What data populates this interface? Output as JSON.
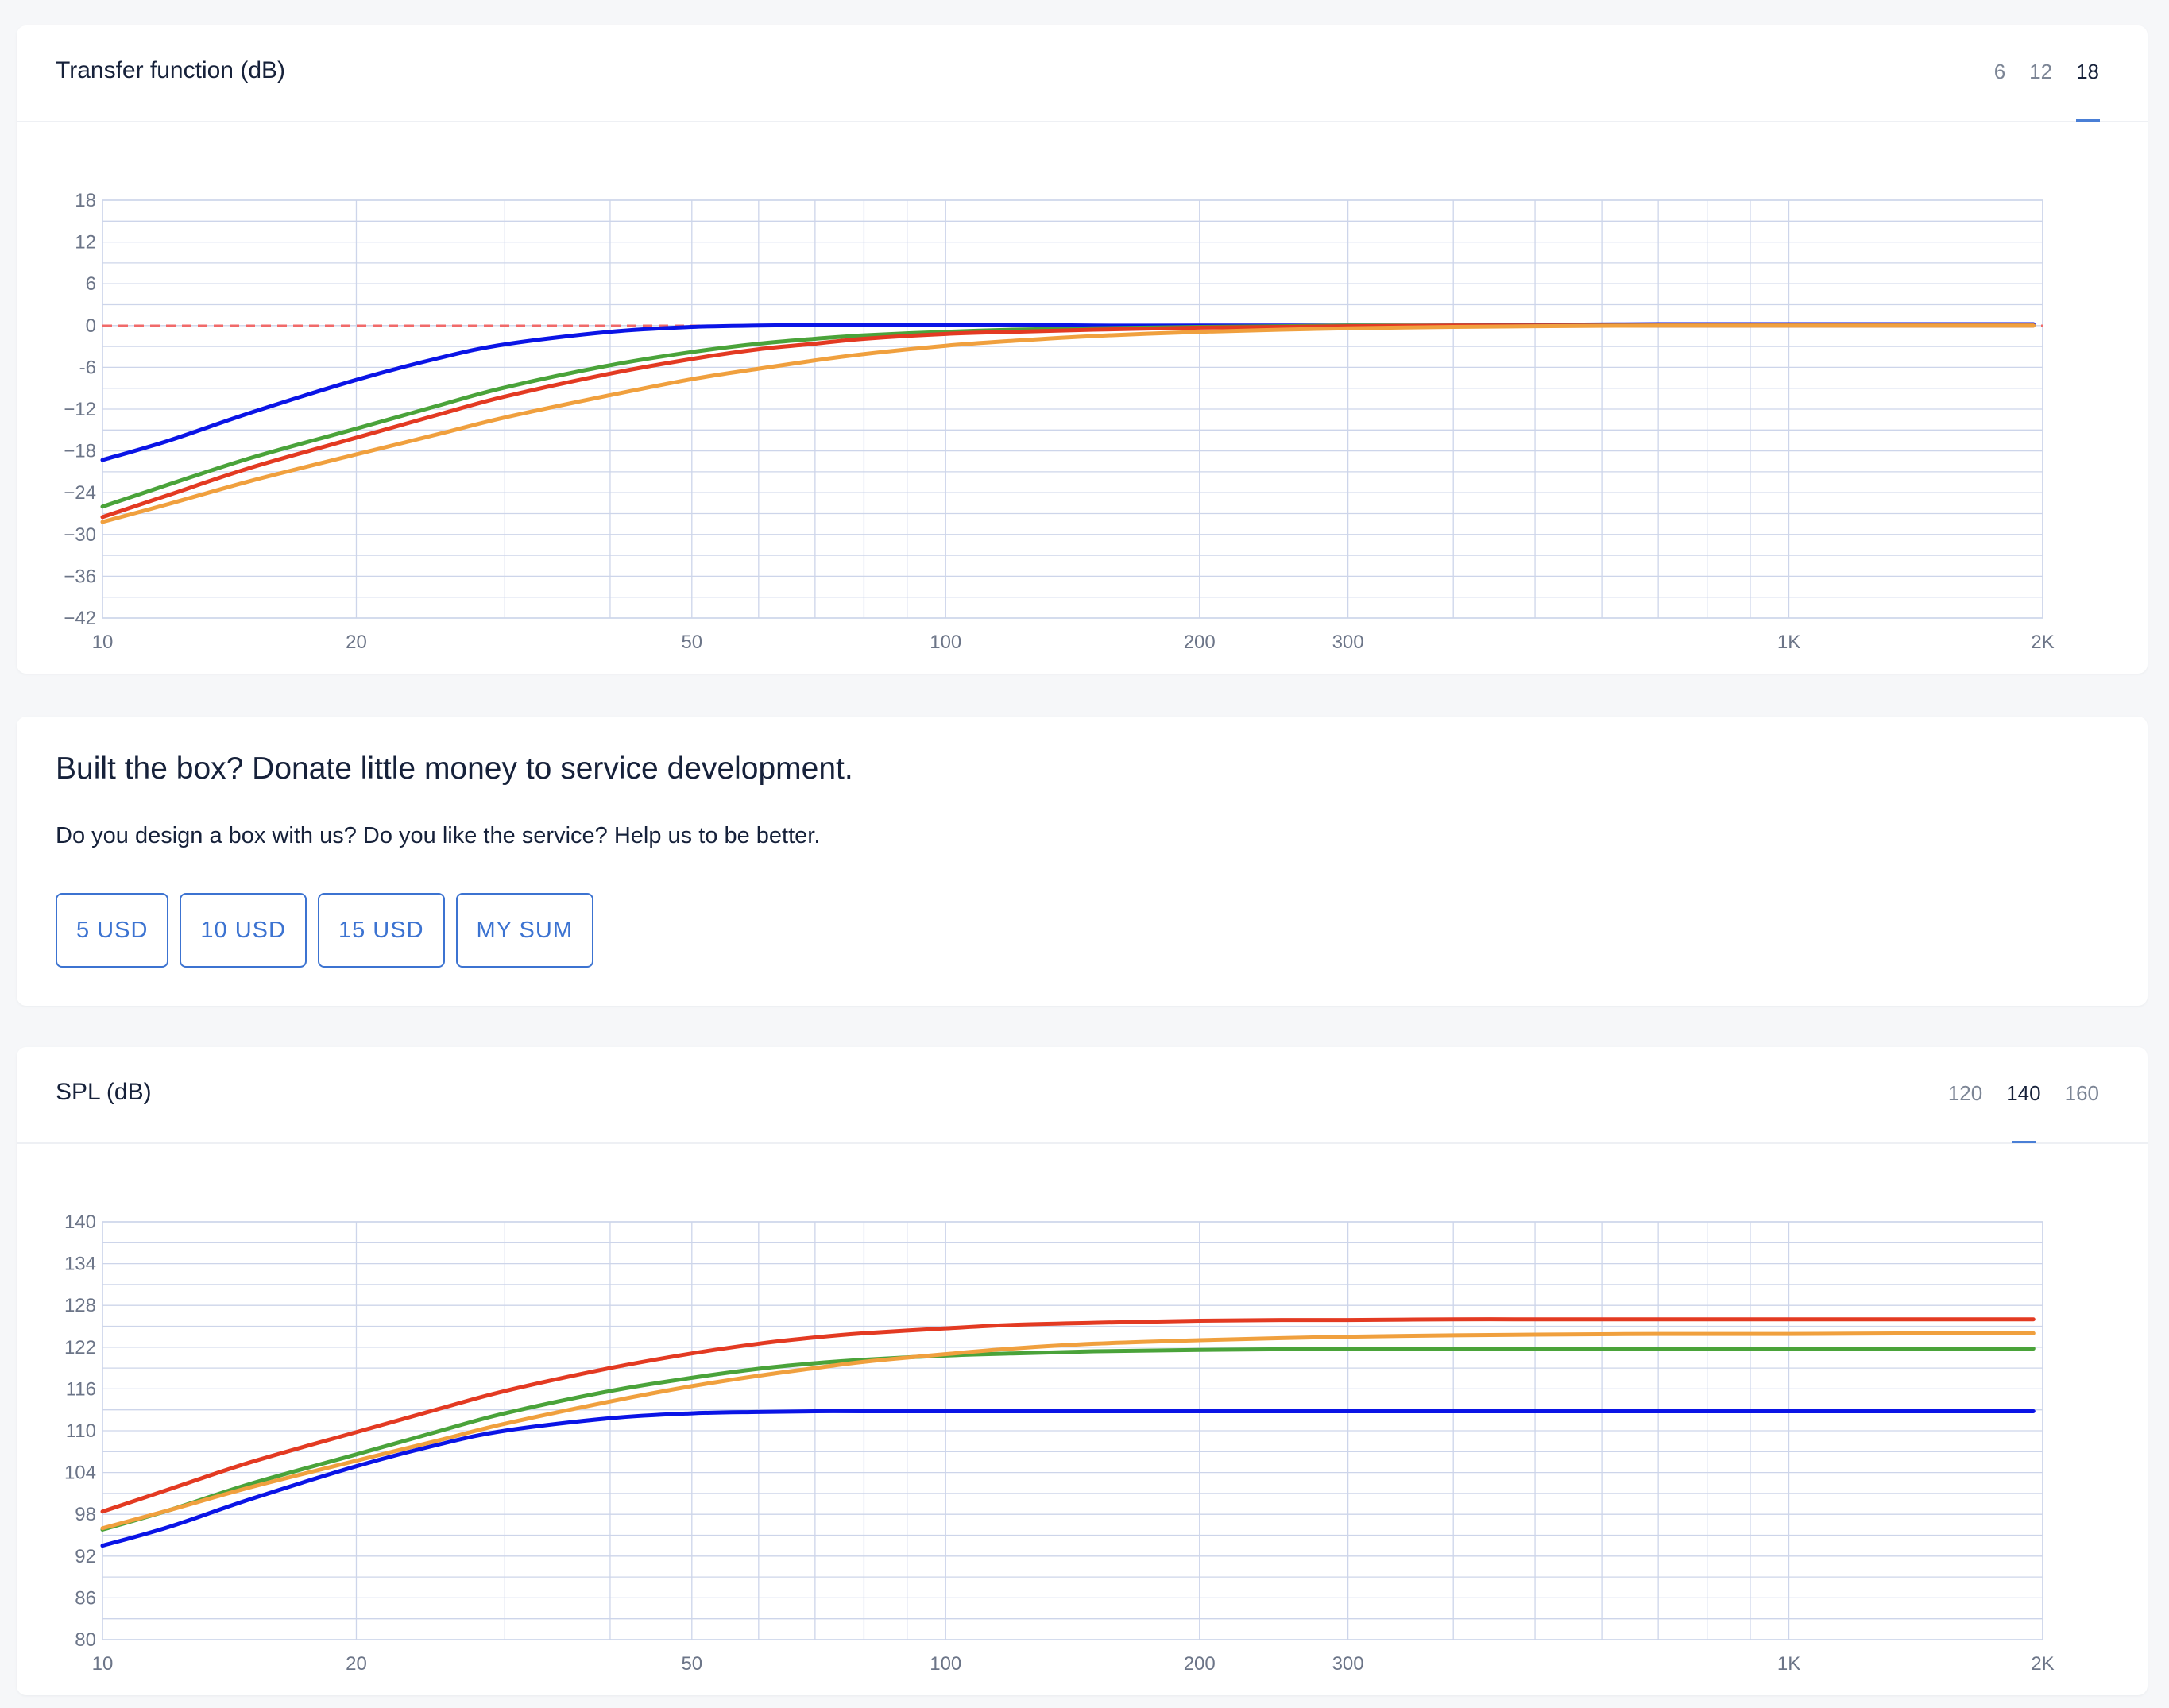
{
  "transfer_card": {
    "title": "Transfer function (dB)",
    "scale_tabs": [
      "6",
      "12",
      "18"
    ],
    "active_tab": "18"
  },
  "donate": {
    "title": "Built the box? Donate little money to service development.",
    "text": "Do you design a box with us? Do you like the service? Help us to be better.",
    "buttons": [
      "5 USD",
      "10 USD",
      "15 USD",
      "MY SUM"
    ]
  },
  "spl_card": {
    "title": "SPL (dB)",
    "scale_tabs": [
      "120",
      "140",
      "160"
    ],
    "active_tab": "140"
  },
  "colors": {
    "blue": "#0a14e6",
    "green": "#4aa33a",
    "red": "#e33a22",
    "orange": "#f0a03e",
    "grid": "#cdd5ea",
    "reference": "#f06a6a"
  },
  "chart_data": [
    {
      "type": "line",
      "title": "Transfer function (dB)",
      "x_scale": "log",
      "xlim": [
        10,
        2000
      ],
      "ylim": [
        -42,
        18
      ],
      "x_ticks": [
        10,
        20,
        50,
        100,
        200,
        300,
        1000,
        2000
      ],
      "x_tick_labels": [
        "10",
        "20",
        "50",
        "100",
        "200",
        "300",
        "1K",
        "2K"
      ],
      "y_ticks": [
        18,
        12,
        6,
        0,
        -6,
        -12,
        -18,
        -24,
        -30,
        -36,
        -42
      ],
      "y_tick_labels": [
        "18",
        "12",
        "6",
        "0",
        "−12",
        "−18",
        "−24",
        "−30",
        "−36",
        "−42"
      ],
      "y_tick_labels_all": [
        "18",
        "12",
        "6",
        "0",
        "-6",
        "−12",
        "−18",
        "−24",
        "−30",
        "−36",
        "−42"
      ],
      "grid": true,
      "reference_line": 0,
      "x": [
        10,
        12,
        15,
        20,
        25,
        30,
        40,
        50,
        60,
        70,
        80,
        100,
        120,
        150,
        200,
        250,
        300,
        400,
        500,
        700,
        1000,
        1500,
        1950
      ],
      "series": [
        {
          "color": "blue",
          "values": [
            -19.3,
            -16.5,
            -12.5,
            -7.8,
            -4.7,
            -2.7,
            -0.9,
            -0.2,
            0.0,
            0.1,
            0.1,
            0.1,
            0.1,
            0.0,
            0.0,
            0.0,
            0.0,
            0.0,
            0.1,
            0.2,
            0.2,
            0.2,
            0.2
          ]
        },
        {
          "color": "green",
          "values": [
            -26.0,
            -22.8,
            -19.0,
            -14.8,
            -11.5,
            -8.9,
            -5.7,
            -3.8,
            -2.6,
            -1.9,
            -1.4,
            -0.9,
            -0.6,
            -0.4,
            -0.2,
            -0.1,
            0.0,
            0.0,
            0.0,
            0.0,
            0.0,
            0.0,
            0.0
          ]
        },
        {
          "color": "red",
          "values": [
            -27.5,
            -24.3,
            -20.4,
            -16.1,
            -12.8,
            -10.2,
            -6.9,
            -4.8,
            -3.4,
            -2.6,
            -1.9,
            -1.2,
            -0.9,
            -0.6,
            -0.3,
            -0.2,
            -0.1,
            0.0,
            0.0,
            0.0,
            0.0,
            0.0,
            0.0
          ]
        },
        {
          "color": "orange",
          "values": [
            -28.2,
            -25.6,
            -22.3,
            -18.5,
            -15.6,
            -13.2,
            -10.0,
            -7.7,
            -6.2,
            -5.0,
            -4.1,
            -2.9,
            -2.2,
            -1.5,
            -0.9,
            -0.6,
            -0.4,
            -0.2,
            -0.1,
            0.0,
            0.0,
            0.0,
            0.0
          ]
        }
      ]
    },
    {
      "type": "line",
      "title": "SPL (dB)",
      "x_scale": "log",
      "xlim": [
        10,
        2000
      ],
      "ylim": [
        80,
        140
      ],
      "x_ticks": [
        10,
        20,
        50,
        100,
        200,
        300,
        1000,
        2000
      ],
      "x_tick_labels": [
        "10",
        "20",
        "50",
        "100",
        "200",
        "300",
        "1K",
        "2K"
      ],
      "y_ticks": [
        140,
        134,
        128,
        122,
        116,
        110,
        104,
        98,
        92,
        86,
        80
      ],
      "y_tick_labels_all": [
        "140",
        "134",
        "128",
        "122",
        "116",
        "110",
        "104",
        "98",
        "92",
        "86",
        "80"
      ],
      "grid": true,
      "x": [
        10,
        12,
        15,
        20,
        25,
        30,
        40,
        50,
        60,
        70,
        80,
        100,
        120,
        150,
        200,
        250,
        300,
        400,
        500,
        700,
        1000,
        1500,
        1950
      ],
      "series": [
        {
          "color": "blue",
          "values": [
            93.5,
            96.2,
            100.2,
            104.9,
            108.0,
            110.0,
            111.8,
            112.5,
            112.7,
            112.8,
            112.8,
            112.8,
            112.8,
            112.8,
            112.8,
            112.8,
            112.8,
            112.8,
            112.8,
            112.8,
            112.8,
            112.8,
            112.8
          ]
        },
        {
          "color": "green",
          "values": [
            95.8,
            98.6,
            102.4,
            106.6,
            109.9,
            112.5,
            115.7,
            117.6,
            118.9,
            119.7,
            120.2,
            120.8,
            121.1,
            121.4,
            121.6,
            121.7,
            121.8,
            121.8,
            121.8,
            121.8,
            121.8,
            121.8,
            121.8
          ]
        },
        {
          "color": "red",
          "values": [
            98.4,
            101.6,
            105.5,
            109.8,
            113.1,
            115.7,
            119.0,
            121.1,
            122.5,
            123.4,
            124.0,
            124.7,
            125.2,
            125.5,
            125.8,
            125.9,
            125.9,
            126.0,
            126.0,
            126.0,
            126.0,
            126.0,
            126.0
          ]
        },
        {
          "color": "orange",
          "values": [
            96.0,
            98.6,
            101.9,
            105.7,
            108.6,
            111.0,
            114.2,
            116.4,
            117.9,
            119.0,
            119.9,
            121.0,
            121.8,
            122.5,
            123.0,
            123.3,
            123.5,
            123.7,
            123.8,
            123.9,
            123.9,
            124.0,
            124.0
          ]
        }
      ]
    }
  ]
}
